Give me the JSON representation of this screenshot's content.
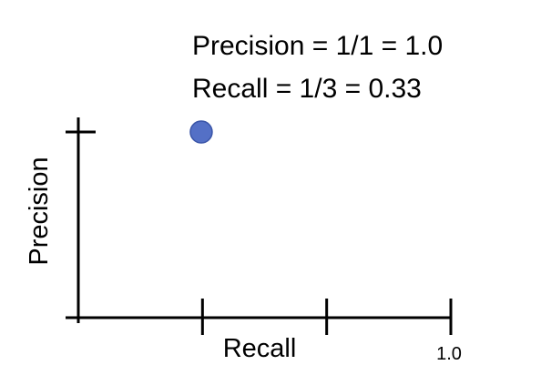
{
  "chart_data": {
    "type": "scatter",
    "annotations": [
      "Precision = 1/1 = 1.0",
      "Recall = 1/3 = 0.33"
    ],
    "xlabel": "Recall",
    "ylabel": "Precision",
    "xlim": [
      0,
      1.0
    ],
    "ylim": [
      0,
      1.0
    ],
    "x_ticks": [
      {
        "value": 0.3333,
        "label": ""
      },
      {
        "value": 0.6667,
        "label": ""
      },
      {
        "value": 1.0,
        "label": "1.0"
      }
    ],
    "y_ticks": [
      {
        "value": 1.0,
        "label": ""
      }
    ],
    "points": [
      {
        "x": 0.33,
        "y": 1.0
      }
    ],
    "point_color": "#5470c6",
    "point_edge_color": "#3a55a8",
    "grid": false
  }
}
